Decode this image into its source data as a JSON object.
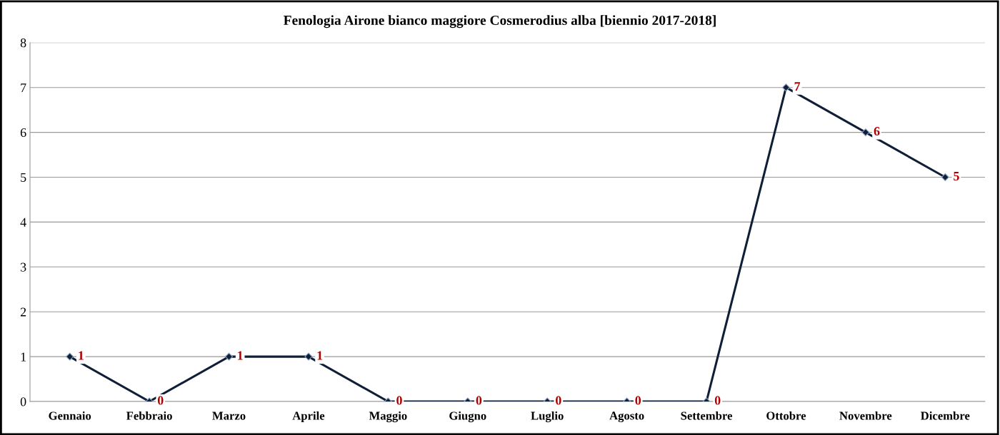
{
  "chart_data": {
    "type": "line",
    "title": "Fenologia Airone bianco maggiore Cosmerodius alba [biennio 2017-2018]",
    "categories": [
      "Gennaio",
      "Febbraio",
      "Marzo",
      "Aprile",
      "Maggio",
      "Giugno",
      "Luglio",
      "Agosto",
      "Settembre",
      "Ottobre",
      "Novembre",
      "Dicembre"
    ],
    "series": [
      {
        "color": "#0f1f38",
        "values": [
          1,
          0,
          1,
          1,
          0,
          0,
          0,
          0,
          0,
          7,
          6,
          5
        ]
      }
    ],
    "ylim": [
      0,
      8
    ],
    "yticks": [
      0,
      1,
      2,
      3,
      4,
      5,
      6,
      7,
      8
    ],
    "grid": "y",
    "marker": "diamond",
    "line_style": "solid",
    "data_labels": true,
    "legend": false
  }
}
